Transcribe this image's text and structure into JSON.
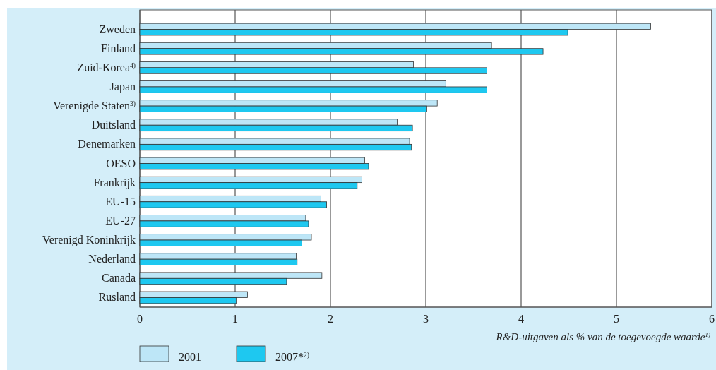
{
  "chart_data": {
    "type": "bar",
    "orientation": "horizontal",
    "categories": [
      "Zweden",
      "Finland",
      "Zuid-Korea$^{4)}$",
      "Japan",
      "Verenigde Staten$^{3)}$",
      "Duitsland",
      "Denemarken",
      "OESO",
      "Frankrijk",
      "EU-15",
      "EU-27",
      "Verenigd Koninkrijk",
      "Nederland",
      "Canada",
      "Rusland"
    ],
    "series": [
      {
        "name": "2001",
        "color": "#bde6f7",
        "values": [
          5.36,
          3.69,
          2.87,
          3.21,
          3.12,
          2.7,
          2.83,
          2.36,
          2.33,
          1.9,
          1.74,
          1.8,
          1.64,
          1.91,
          1.13
        ]
      },
      {
        "name": "2007*$^{2)}$",
        "color": "#1ec8f0",
        "values": [
          4.49,
          4.23,
          3.64,
          3.64,
          3.01,
          2.86,
          2.85,
          2.4,
          2.28,
          1.96,
          1.77,
          1.7,
          1.65,
          1.54,
          1.01
        ]
      }
    ],
    "xlabel": "R&D-uitgaven als % van de toegevoegde waarde$^{1)}$",
    "xlim": [
      0,
      6
    ],
    "xticks": [
      0,
      1,
      2,
      3,
      4,
      5,
      6
    ],
    "grid": "x",
    "legend": "bottom left"
  }
}
